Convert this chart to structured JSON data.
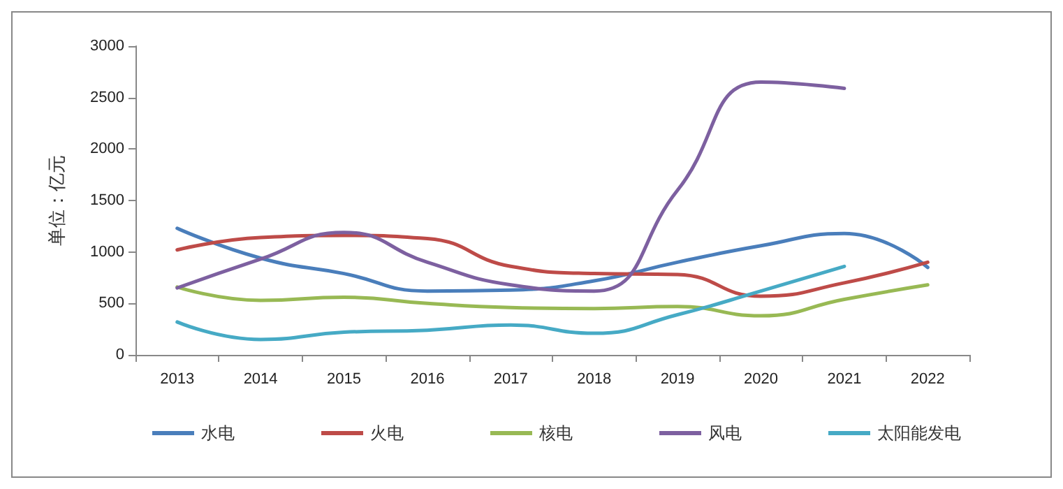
{
  "chart_data": {
    "type": "line",
    "ylabel": "单位：亿元",
    "categories": [
      "2013",
      "2014",
      "2015",
      "2016",
      "2017",
      "2018",
      "2019",
      "2020",
      "2021",
      "2022"
    ],
    "series": [
      {
        "name": "水电",
        "color": "#4a7ebb",
        "values": [
          1230,
          940,
          790,
          620,
          630,
          720,
          900,
          1060,
          1180,
          850
        ]
      },
      {
        "name": "火电",
        "color": "#be4b48",
        "values": [
          1020,
          1140,
          1160,
          1130,
          860,
          790,
          780,
          570,
          700,
          900
        ]
      },
      {
        "name": "核电",
        "color": "#98b954",
        "values": [
          660,
          530,
          560,
          500,
          460,
          450,
          470,
          380,
          540,
          680
        ]
      },
      {
        "name": "风电",
        "color": "#7d60a0",
        "values": [
          650,
          930,
          1190,
          900,
          680,
          620,
          1600,
          2650,
          2590,
          null
        ]
      },
      {
        "name": "太阳能发电",
        "color": "#46aac5",
        "values": [
          320,
          150,
          220,
          240,
          290,
          210,
          390,
          620,
          860,
          null
        ]
      }
    ],
    "ylim": [
      0,
      3000
    ],
    "yticks": [
      0,
      500,
      1000,
      1500,
      2000,
      2500,
      3000
    ],
    "grid": false,
    "legend": "bottom",
    "marker": "none",
    "line_style": "solid"
  }
}
